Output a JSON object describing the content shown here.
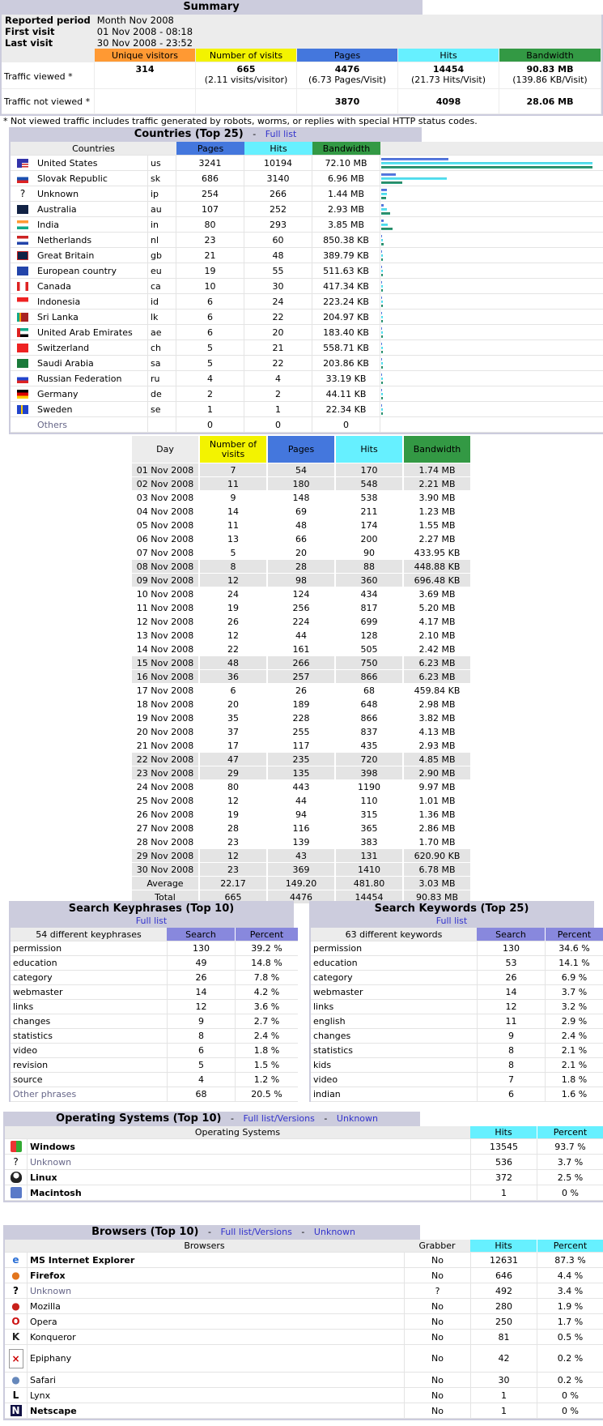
{
  "summary": {
    "title": "Summary",
    "info": [
      {
        "label": "Reported period",
        "value": "Month Nov 2008"
      },
      {
        "label": "First visit",
        "value": "01 Nov 2008 - 08:18"
      },
      {
        "label": "Last visit",
        "value": "30 Nov 2008 - 23:52"
      }
    ],
    "headers": [
      "Unique visitors",
      "Number of visits",
      "Pages",
      "Hits",
      "Bandwidth"
    ],
    "viewed": {
      "label": "Traffic viewed *",
      "unique": "314",
      "visits": "665",
      "visits_sub": "(2.11 visits/visitor)",
      "pages": "4476",
      "pages_sub": "(6.73 Pages/Visit)",
      "hits": "14454",
      "hits_sub": "(21.73 Hits/Visit)",
      "bandwidth": "90.83 MB",
      "bandwidth_sub": "(139.86 KB/Visit)"
    },
    "not_viewed": {
      "label": "Traffic not viewed *",
      "pages": "3870",
      "hits": "4098",
      "bandwidth": "28.06 MB"
    },
    "note": "* Not viewed traffic includes traffic generated by robots, worms, or replies with special HTTP status codes."
  },
  "countries": {
    "title": "Countries (Top 25)",
    "sep": "-",
    "full_list": "Full list",
    "headers": [
      "Countries",
      "Pages",
      "Hits",
      "Bandwidth"
    ],
    "rows": [
      {
        "flag": "us",
        "name": "United States",
        "code": "us",
        "pages": "3241",
        "hits": "10194",
        "bandwidth": "72.10 MB",
        "bp": 83,
        "bh": 261,
        "bb": 261
      },
      {
        "flag": "sk",
        "name": "Slovak Republic",
        "code": "sk",
        "pages": "686",
        "hits": "3140",
        "bandwidth": "6.96 MB",
        "bp": 18,
        "bh": 81,
        "bb": 26
      },
      {
        "flag": "unknown",
        "name": "Unknown",
        "code": "ip",
        "pages": "254",
        "hits": "266",
        "bandwidth": "1.44 MB",
        "bp": 7,
        "bh": 7,
        "bb": 6
      },
      {
        "flag": "au",
        "name": "Australia",
        "code": "au",
        "pages": "107",
        "hits": "252",
        "bandwidth": "2.93 MB",
        "bp": 3,
        "bh": 7,
        "bb": 11
      },
      {
        "flag": "in",
        "name": "India",
        "code": "in",
        "pages": "80",
        "hits": "293",
        "bandwidth": "3.85 MB",
        "bp": 3,
        "bh": 8,
        "bb": 14
      },
      {
        "flag": "nl",
        "name": "Netherlands",
        "code": "nl",
        "pages": "23",
        "hits": "60",
        "bandwidth": "850.38 KB",
        "bp": 1,
        "bh": 2,
        "bb": 3
      },
      {
        "flag": "gb",
        "name": "Great Britain",
        "code": "gb",
        "pages": "21",
        "hits": "48",
        "bandwidth": "389.79 KB",
        "bp": 1,
        "bh": 2,
        "bb": 2
      },
      {
        "flag": "eu",
        "name": "European country",
        "code": "eu",
        "pages": "19",
        "hits": "55",
        "bandwidth": "511.63 KB",
        "bp": 1,
        "bh": 2,
        "bb": 2
      },
      {
        "flag": "ca",
        "name": "Canada",
        "code": "ca",
        "pages": "10",
        "hits": "30",
        "bandwidth": "417.34 KB",
        "bp": 1,
        "bh": 2,
        "bb": 2
      },
      {
        "flag": "id",
        "name": "Indonesia",
        "code": "id",
        "pages": "6",
        "hits": "24",
        "bandwidth": "223.24 KB",
        "bp": 1,
        "bh": 2,
        "bb": 2
      },
      {
        "flag": "lk",
        "name": "Sri Lanka",
        "code": "lk",
        "pages": "6",
        "hits": "22",
        "bandwidth": "204.97 KB",
        "bp": 1,
        "bh": 2,
        "bb": 2
      },
      {
        "flag": "ae",
        "name": "United Arab Emirates",
        "code": "ae",
        "pages": "6",
        "hits": "20",
        "bandwidth": "183.40 KB",
        "bp": 1,
        "bh": 2,
        "bb": 2
      },
      {
        "flag": "ch",
        "name": "Switzerland",
        "code": "ch",
        "pages": "5",
        "hits": "21",
        "bandwidth": "558.71 KB",
        "bp": 1,
        "bh": 2,
        "bb": 2
      },
      {
        "flag": "sa",
        "name": "Saudi Arabia",
        "code": "sa",
        "pages": "5",
        "hits": "22",
        "bandwidth": "203.86 KB",
        "bp": 1,
        "bh": 2,
        "bb": 2
      },
      {
        "flag": "ru",
        "name": "Russian Federation",
        "code": "ru",
        "pages": "4",
        "hits": "4",
        "bandwidth": "33.19 KB",
        "bp": 1,
        "bh": 2,
        "bb": 2
      },
      {
        "flag": "de",
        "name": "Germany",
        "code": "de",
        "pages": "2",
        "hits": "2",
        "bandwidth": "44.11 KB",
        "bp": 1,
        "bh": 2,
        "bb": 2
      },
      {
        "flag": "se",
        "name": "Sweden",
        "code": "se",
        "pages": "1",
        "hits": "1",
        "bandwidth": "22.34 KB",
        "bp": 1,
        "bh": 2,
        "bb": 2
      }
    ],
    "others": {
      "name": "Others",
      "pages": "0",
      "hits": "0",
      "bandwidth": "0"
    }
  },
  "days": {
    "headers": [
      "Day",
      "Number of visits",
      "Pages",
      "Hits",
      "Bandwidth"
    ],
    "rows": [
      {
        "day": "01 Nov 2008",
        "visits": "7",
        "pages": "54",
        "hits": "170",
        "bandwidth": "1.74 MB",
        "weekend": true
      },
      {
        "day": "02 Nov 2008",
        "visits": "11",
        "pages": "180",
        "hits": "548",
        "bandwidth": "2.21 MB",
        "weekend": true
      },
      {
        "day": "03 Nov 2008",
        "visits": "9",
        "pages": "148",
        "hits": "538",
        "bandwidth": "3.90 MB",
        "weekend": false
      },
      {
        "day": "04 Nov 2008",
        "visits": "14",
        "pages": "69",
        "hits": "211",
        "bandwidth": "1.23 MB",
        "weekend": false
      },
      {
        "day": "05 Nov 2008",
        "visits": "11",
        "pages": "48",
        "hits": "174",
        "bandwidth": "1.55 MB",
        "weekend": false
      },
      {
        "day": "06 Nov 2008",
        "visits": "13",
        "pages": "66",
        "hits": "200",
        "bandwidth": "2.27 MB",
        "weekend": false
      },
      {
        "day": "07 Nov 2008",
        "visits": "5",
        "pages": "20",
        "hits": "90",
        "bandwidth": "433.95 KB",
        "weekend": false
      },
      {
        "day": "08 Nov 2008",
        "visits": "8",
        "pages": "28",
        "hits": "88",
        "bandwidth": "448.88 KB",
        "weekend": true
      },
      {
        "day": "09 Nov 2008",
        "visits": "12",
        "pages": "98",
        "hits": "360",
        "bandwidth": "696.48 KB",
        "weekend": true
      },
      {
        "day": "10 Nov 2008",
        "visits": "24",
        "pages": "124",
        "hits": "434",
        "bandwidth": "3.69 MB",
        "weekend": false
      },
      {
        "day": "11 Nov 2008",
        "visits": "19",
        "pages": "256",
        "hits": "817",
        "bandwidth": "5.20 MB",
        "weekend": false
      },
      {
        "day": "12 Nov 2008",
        "visits": "26",
        "pages": "224",
        "hits": "699",
        "bandwidth": "4.17 MB",
        "weekend": false
      },
      {
        "day": "13 Nov 2008",
        "visits": "12",
        "pages": "44",
        "hits": "128",
        "bandwidth": "2.10 MB",
        "weekend": false
      },
      {
        "day": "14 Nov 2008",
        "visits": "22",
        "pages": "161",
        "hits": "505",
        "bandwidth": "2.42 MB",
        "weekend": false
      },
      {
        "day": "15 Nov 2008",
        "visits": "48",
        "pages": "266",
        "hits": "750",
        "bandwidth": "6.23 MB",
        "weekend": true
      },
      {
        "day": "16 Nov 2008",
        "visits": "36",
        "pages": "257",
        "hits": "866",
        "bandwidth": "6.23 MB",
        "weekend": true
      },
      {
        "day": "17 Nov 2008",
        "visits": "6",
        "pages": "26",
        "hits": "68",
        "bandwidth": "459.84 KB",
        "weekend": false
      },
      {
        "day": "18 Nov 2008",
        "visits": "20",
        "pages": "189",
        "hits": "648",
        "bandwidth": "2.98 MB",
        "weekend": false
      },
      {
        "day": "19 Nov 2008",
        "visits": "35",
        "pages": "228",
        "hits": "866",
        "bandwidth": "3.82 MB",
        "weekend": false
      },
      {
        "day": "20 Nov 2008",
        "visits": "37",
        "pages": "255",
        "hits": "837",
        "bandwidth": "4.13 MB",
        "weekend": false
      },
      {
        "day": "21 Nov 2008",
        "visits": "17",
        "pages": "117",
        "hits": "435",
        "bandwidth": "2.93 MB",
        "weekend": false
      },
      {
        "day": "22 Nov 2008",
        "visits": "47",
        "pages": "235",
        "hits": "720",
        "bandwidth": "4.85 MB",
        "weekend": true
      },
      {
        "day": "23 Nov 2008",
        "visits": "29",
        "pages": "135",
        "hits": "398",
        "bandwidth": "2.90 MB",
        "weekend": true
      },
      {
        "day": "24 Nov 2008",
        "visits": "80",
        "pages": "443",
        "hits": "1190",
        "bandwidth": "9.97 MB",
        "weekend": false
      },
      {
        "day": "25 Nov 2008",
        "visits": "12",
        "pages": "44",
        "hits": "110",
        "bandwidth": "1.01 MB",
        "weekend": false
      },
      {
        "day": "26 Nov 2008",
        "visits": "19",
        "pages": "94",
        "hits": "315",
        "bandwidth": "1.36 MB",
        "weekend": false
      },
      {
        "day": "27 Nov 2008",
        "visits": "28",
        "pages": "116",
        "hits": "365",
        "bandwidth": "2.86 MB",
        "weekend": false
      },
      {
        "day": "28 Nov 2008",
        "visits": "23",
        "pages": "139",
        "hits": "383",
        "bandwidth": "1.70 MB",
        "weekend": false
      },
      {
        "day": "29 Nov 2008",
        "visits": "12",
        "pages": "43",
        "hits": "131",
        "bandwidth": "620.90 KB",
        "weekend": true
      },
      {
        "day": "30 Nov 2008",
        "visits": "23",
        "pages": "369",
        "hits": "1410",
        "bandwidth": "6.78 MB",
        "weekend": true
      }
    ],
    "average": {
      "day": "Average",
      "visits": "22.17",
      "pages": "149.20",
      "hits": "481.80",
      "bandwidth": "3.03 MB"
    },
    "total": {
      "day": "Total",
      "visits": "665",
      "pages": "4476",
      "hits": "14454",
      "bandwidth": "90.83 MB"
    }
  },
  "keyphrases": {
    "title": "Search Keyphrases (Top 10)",
    "full_list": "Full list",
    "headers": [
      "54 different keyphrases",
      "Search",
      "Percent"
    ],
    "rows": [
      {
        "term": "permission",
        "search": "130",
        "percent": "39.2 %"
      },
      {
        "term": "education",
        "search": "49",
        "percent": "14.8 %"
      },
      {
        "term": "category",
        "search": "26",
        "percent": "7.8 %"
      },
      {
        "term": "webmaster",
        "search": "14",
        "percent": "4.2 %"
      },
      {
        "term": "links",
        "search": "12",
        "percent": "3.6 %"
      },
      {
        "term": "changes",
        "search": "9",
        "percent": "2.7 %"
      },
      {
        "term": "statistics",
        "search": "8",
        "percent": "2.4 %"
      },
      {
        "term": "video",
        "search": "6",
        "percent": "1.8 %"
      },
      {
        "term": "revision",
        "search": "5",
        "percent": "1.5 %"
      },
      {
        "term": "source",
        "search": "4",
        "percent": "1.2 %"
      }
    ],
    "others": {
      "term": "Other phrases",
      "search": "68",
      "percent": "20.5 %"
    }
  },
  "keywords": {
    "title": "Search Keywords (Top 25)",
    "full_list": "Full list",
    "headers": [
      "63 different keywords",
      "Search",
      "Percent"
    ],
    "rows": [
      {
        "term": "permission",
        "search": "130",
        "percent": "34.6 %"
      },
      {
        "term": "education",
        "search": "53",
        "percent": "14.1 %"
      },
      {
        "term": "category",
        "search": "26",
        "percent": "6.9 %"
      },
      {
        "term": "webmaster",
        "search": "14",
        "percent": "3.7 %"
      },
      {
        "term": "links",
        "search": "12",
        "percent": "3.2 %"
      },
      {
        "term": "english",
        "search": "11",
        "percent": "2.9 %"
      },
      {
        "term": "changes",
        "search": "9",
        "percent": "2.4 %"
      },
      {
        "term": "statistics",
        "search": "8",
        "percent": "2.1 %"
      },
      {
        "term": "kids",
        "search": "8",
        "percent": "2.1 %"
      },
      {
        "term": "video",
        "search": "7",
        "percent": "1.8 %"
      },
      {
        "term": "indian",
        "search": "6",
        "percent": "1.6 %"
      }
    ]
  },
  "os": {
    "title": "Operating Systems (Top 10)",
    "sep": "-",
    "full_list": "Full list/Versions",
    "unknown_link": "Unknown",
    "headers": [
      "Operating Systems",
      "Hits",
      "Percent"
    ],
    "rows": [
      {
        "icon": "windows-icon",
        "glyph": "⊞",
        "name": "Windows",
        "hits": "13545",
        "percent": "93.7 %",
        "style": "bold"
      },
      {
        "icon": "unknown-icon",
        "glyph": "?",
        "name": "Unknown",
        "hits": "536",
        "percent": "3.7 %",
        "style": "muted"
      },
      {
        "icon": "linux-icon",
        "glyph": "🐧",
        "name": "Linux",
        "hits": "372",
        "percent": "2.5 %",
        "style": "bold"
      },
      {
        "icon": "macintosh-icon",
        "glyph": "☺",
        "name": "Macintosh",
        "hits": "1",
        "percent": "0 %",
        "style": "bold"
      }
    ]
  },
  "browsers": {
    "title": "Browsers (Top 10)",
    "sep": "-",
    "full_list": "Full list/Versions",
    "unknown_link": "Unknown",
    "headers": [
      "Browsers",
      "Grabber",
      "Hits",
      "Percent"
    ],
    "rows": [
      {
        "icon": "internet-explorer-icon",
        "glyph": "e",
        "color": "#2a6fd6",
        "name": "MS Internet Explorer",
        "grabber": "No",
        "hits": "12631",
        "percent": "87.3 %",
        "style": "bold"
      },
      {
        "icon": "firefox-icon",
        "glyph": "●",
        "color": "#e2751d",
        "name": "Firefox",
        "grabber": "No",
        "hits": "646",
        "percent": "4.4 %",
        "style": "bold"
      },
      {
        "icon": "unknown-icon",
        "glyph": "?",
        "color": "#000000",
        "name": "Unknown",
        "grabber": "?",
        "hits": "492",
        "percent": "3.4 %",
        "style": "muted"
      },
      {
        "icon": "mozilla-icon",
        "glyph": "●",
        "color": "#c8201a",
        "name": "Mozilla",
        "grabber": "No",
        "hits": "280",
        "percent": "1.9 %",
        "style": ""
      },
      {
        "icon": "opera-icon",
        "glyph": "O",
        "color": "#cc1111",
        "name": "Opera",
        "grabber": "No",
        "hits": "250",
        "percent": "1.7 %",
        "style": ""
      },
      {
        "icon": "konqueror-icon",
        "glyph": "K",
        "color": "#222222",
        "name": "Konqueror",
        "grabber": "No",
        "hits": "81",
        "percent": "0.5 %",
        "style": ""
      },
      {
        "icon": "epiphany-broken-image-icon",
        "glyph": "×",
        "color": "#cc0000",
        "name": "Epiphany",
        "grabber": "No",
        "hits": "42",
        "percent": "0.2 %",
        "style": "",
        "tall": true
      },
      {
        "icon": "safari-icon",
        "glyph": "●",
        "color": "#6688bb",
        "name": "Safari",
        "grabber": "No",
        "hits": "30",
        "percent": "0.2 %",
        "style": ""
      },
      {
        "icon": "lynx-icon",
        "glyph": "L",
        "color": "#000000",
        "name": "Lynx",
        "grabber": "No",
        "hits": "1",
        "percent": "0 %",
        "style": ""
      },
      {
        "icon": "netscape-icon",
        "glyph": "N",
        "color": "#ffffff",
        "name": "Netscape",
        "grabber": "No",
        "hits": "1",
        "percent": "0 %",
        "style": "bold"
      }
    ]
  }
}
